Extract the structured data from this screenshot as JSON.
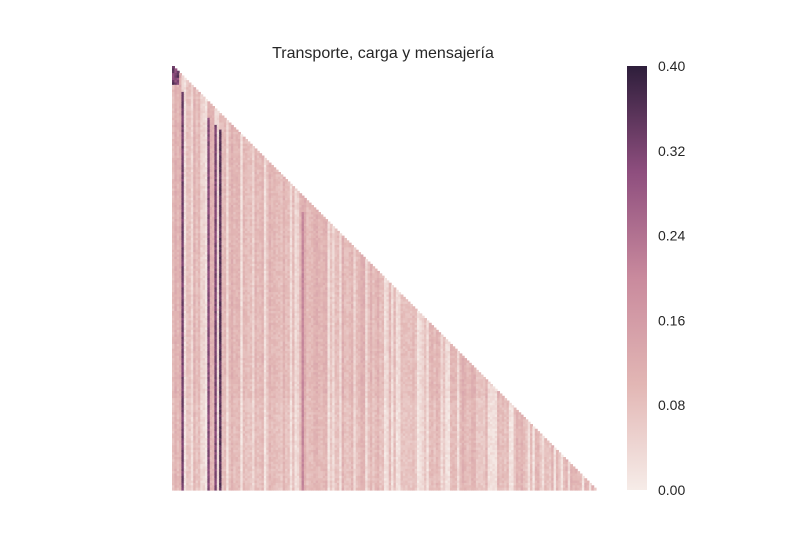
{
  "chart_data": {
    "type": "heatmap",
    "title": "Transporte, carga y mensajería",
    "shape": "lower-triangle",
    "colormap": [
      "#f6ece8",
      "#e2b6b4",
      "#c98a9d",
      "#8e4e7e",
      "#2e1e3b"
    ],
    "colorbar": {
      "min": 0.0,
      "max": 0.4,
      "ticks": [
        0.0,
        0.08,
        0.16,
        0.24,
        0.32,
        0.4
      ],
      "tick_labels": [
        "0.00",
        "0.08",
        "0.16",
        "0.24",
        "0.32",
        "0.40"
      ]
    },
    "n_items": 180,
    "typical_value": 0.09,
    "value_range_typical": [
      0.0,
      0.12
    ],
    "high_value_columns": [
      {
        "column": 4,
        "value": 0.35
      },
      {
        "column": 15,
        "value": 0.33
      },
      {
        "column": 18,
        "value": 0.34
      },
      {
        "column": 20,
        "value": 0.38
      },
      {
        "column": 55,
        "value": 0.22
      }
    ],
    "xlabel": "",
    "ylabel": ""
  }
}
